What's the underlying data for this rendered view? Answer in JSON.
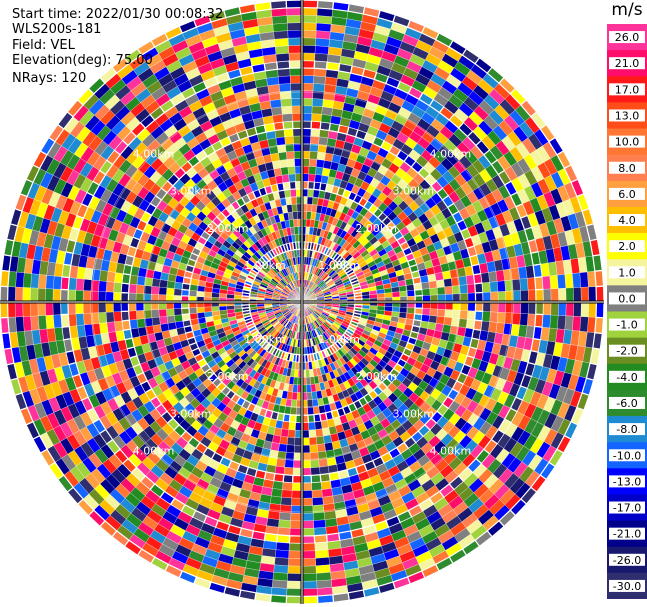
{
  "header": {
    "start_time": "Start time: 2022/01/30 00:08:32",
    "instrument": "WLS200s-181",
    "field": "Field: VEL",
    "elevation": "Elevation(deg): 75.00",
    "nrays": "NRays: 120"
  },
  "chart_data": {
    "type": "ppi",
    "field": "VEL",
    "elevation_deg": 75.0,
    "n_rays": 120,
    "range_max_km": 5.0,
    "range_ring_labels": [
      "1.00km",
      "2.00km",
      "3.00km",
      "4.00km"
    ],
    "colorbar": {
      "unit": "m/s",
      "ticks": [
        "26.0",
        "21.0",
        "17.0",
        "13.0",
        "10.0",
        "8.0",
        "6.0",
        "4.0",
        "2.0",
        "1.0",
        "0.0",
        "-1.0",
        "-2.0",
        "-4.0",
        "-6.0",
        "-8.0",
        "-10.0",
        "-13.0",
        "-17.0",
        "-21.0",
        "-26.0",
        "-30.0"
      ],
      "colors": [
        "#ff3399",
        "#ff0d6a",
        "#ff1a1a",
        "#ff4d1a",
        "#ff7733",
        "#ff7f50",
        "#ff9f40",
        "#ffbf00",
        "#ffff00",
        "#f5f5a0",
        "#808080",
        "#9fd23c",
        "#6b8e23",
        "#228b22",
        "#2e8b2e",
        "#1f8bd2",
        "#1464ff",
        "#0000ff",
        "#0000c8",
        "#00008b",
        "#191970",
        "#2f2f6f"
      ],
      "boundaries": [
        30,
        26,
        21,
        17,
        13,
        10,
        8,
        6,
        4,
        2,
        1,
        0,
        -1,
        -2,
        -4,
        -6,
        -8,
        -10,
        -13,
        -17,
        -21,
        -26,
        -30
      ]
    }
  }
}
